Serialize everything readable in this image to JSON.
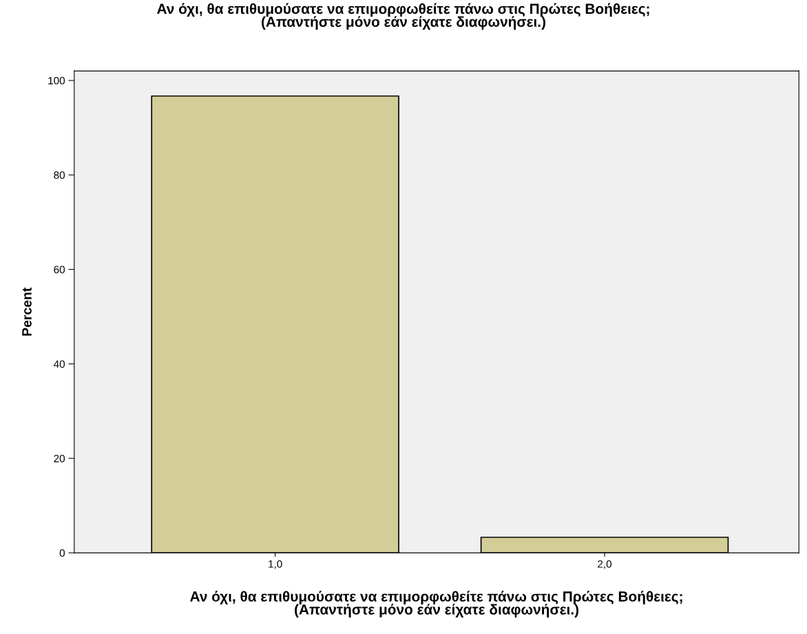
{
  "chart_data": {
    "type": "bar",
    "title": "Αν όχι, θα επιθυμούσατε να επιμορφωθείτε πάνω στις Πρώτες Βοήθειες;\n(Απαντήστε μόνο εάν είχατε διαφωνήσει.)",
    "xlabel": "Αν όχι, θα επιθυμούσατε να επιμορφωθείτε πάνω στις Πρώτες Βοήθειες;\n(Απαντήστε μόνο εάν είχατε διαφωνήσει.)",
    "ylabel": "Percent",
    "categories": [
      "1,0",
      "2,0"
    ],
    "values": [
      96.7,
      3.3
    ],
    "color": "#d3ce97",
    "ylim": [
      0,
      102
    ],
    "yticks": [
      0,
      20,
      40,
      60,
      80,
      100
    ],
    "grid": false
  }
}
